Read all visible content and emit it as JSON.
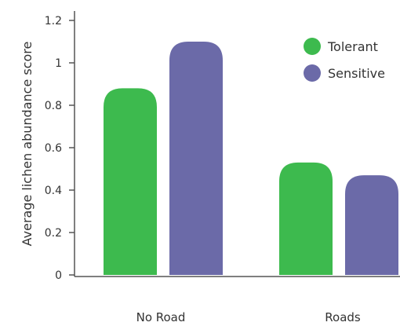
{
  "chart_data": {
    "type": "bar",
    "categories": [
      "No Road",
      "Roads"
    ],
    "series": [
      {
        "name": "Tolerant",
        "values": [
          0.88,
          0.53
        ],
        "color": "#3dba4e"
      },
      {
        "name": "Sensitive",
        "values": [
          1.1,
          0.47
        ],
        "color": "#6b6aa8"
      }
    ],
    "title": "",
    "xlabel": "",
    "ylabel": "Average lichen abundance score",
    "ylim": [
      0,
      1.2
    ],
    "yticks": [
      0,
      0.2,
      0.4,
      0.6,
      0.8,
      1,
      1.2
    ],
    "grid": false,
    "legend_position": "top-right",
    "bar_style": "rounded-top"
  }
}
